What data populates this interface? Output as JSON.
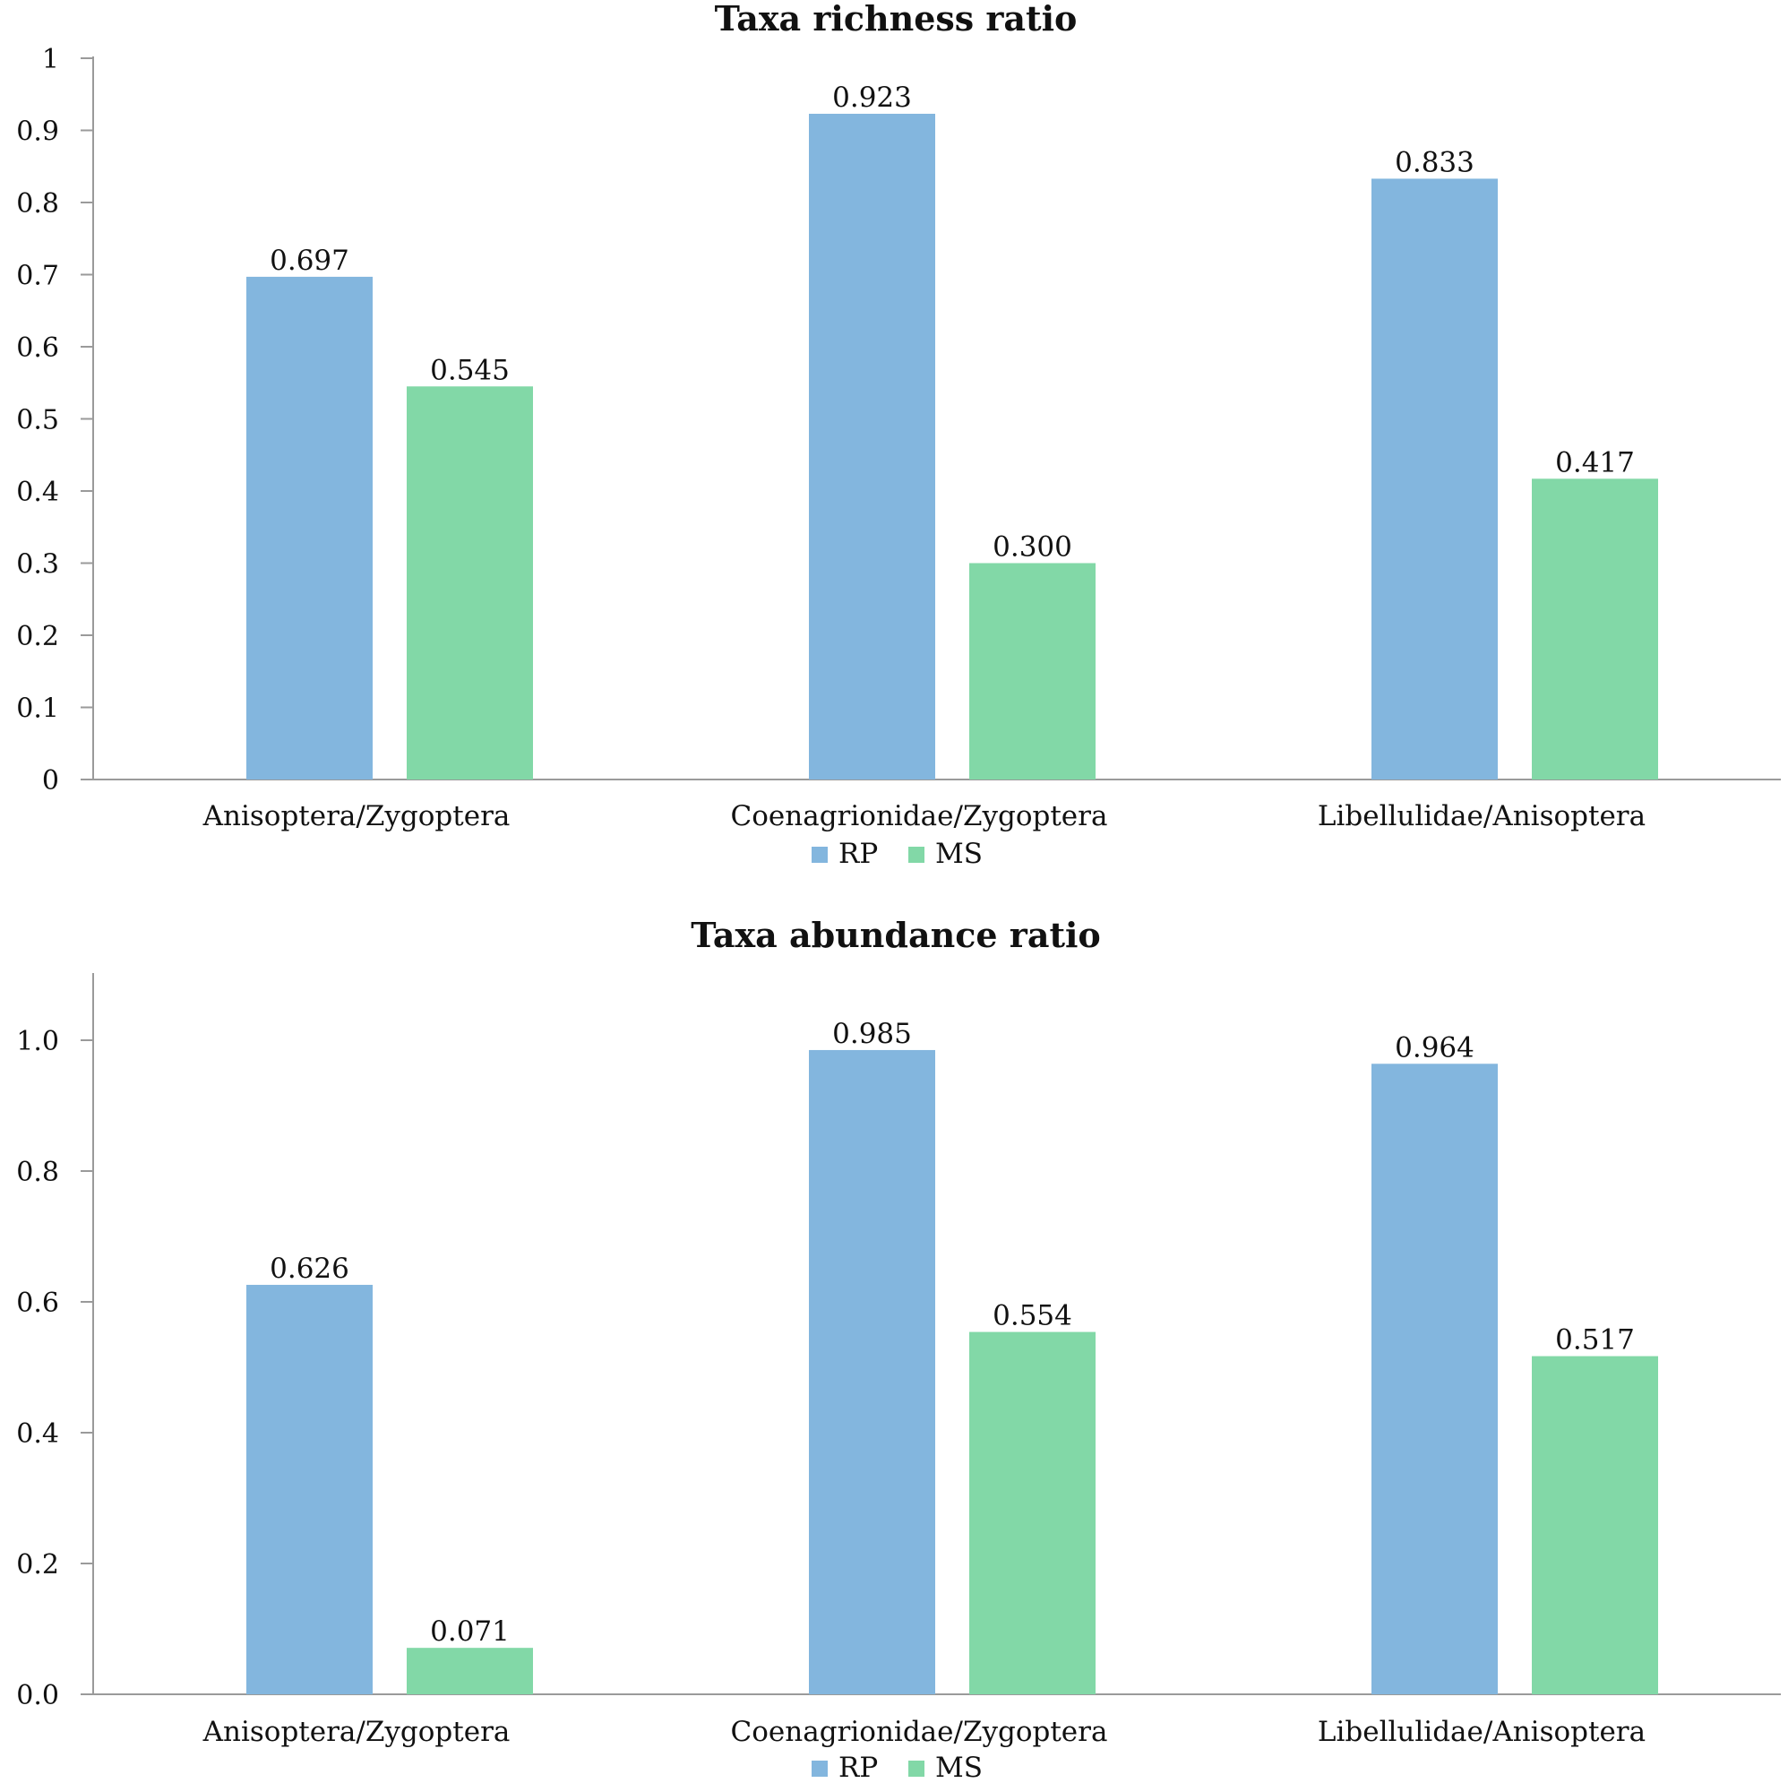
{
  "chart_data": [
    {
      "type": "bar",
      "title": "Taxa richness ratio",
      "xlabel": "",
      "ylabel": "",
      "categories": [
        "Anisoptera/Zygoptera",
        "Coenagrionidae/Zygoptera",
        "Libellulidae/Anisoptera"
      ],
      "series": [
        {
          "name": "RP",
          "color": "#83B6DE",
          "values": [
            0.697,
            0.923,
            0.833
          ],
          "labels": [
            "0.697",
            "0.923",
            "0.833"
          ]
        },
        {
          "name": "MS",
          "color": "#82D8A7",
          "values": [
            0.545,
            0.3,
            0.417
          ],
          "labels": [
            "0.545",
            "0.300",
            "0.417"
          ]
        }
      ],
      "ylim": [
        0,
        1
      ],
      "yticks": [
        0,
        0.1,
        0.2,
        0.3,
        0.4,
        0.5,
        0.6,
        0.7,
        0.8,
        0.9,
        1
      ],
      "ytick_labels": [
        "0",
        "0.1",
        "0.2",
        "0.3",
        "0.4",
        "0.5",
        "0.6",
        "0.7",
        "0.8",
        "0.9",
        "1"
      ],
      "grid": false,
      "legend": "bottom-center"
    },
    {
      "type": "bar",
      "title": "Taxa abundance ratio",
      "xlabel": "",
      "ylabel": "",
      "categories": [
        "Anisoptera/Zygoptera",
        "Coenagrionidae/Zygoptera",
        "Libellulidae/Anisoptera"
      ],
      "series": [
        {
          "name": "RP",
          "color": "#83B6DE",
          "values": [
            0.626,
            0.985,
            0.964
          ],
          "labels": [
            "0.626",
            "0.985",
            "0.964"
          ]
        },
        {
          "name": "MS",
          "color": "#82D8A7",
          "values": [
            0.071,
            0.554,
            0.517
          ],
          "labels": [
            "0.071",
            "0.554",
            "0.517"
          ]
        }
      ],
      "ylim": [
        0,
        1.1
      ],
      "yticks": [
        0,
        0.2,
        0.4,
        0.6,
        0.8,
        1.0
      ],
      "ytick_labels": [
        "0.0",
        "0.2",
        "0.4",
        "0.6",
        "0.8",
        "1.0"
      ],
      "grid": false,
      "legend": "bottom-center"
    }
  ],
  "colors": {
    "axis": "#9A9A9A",
    "text": "#111111",
    "background": "#FFFFFF"
  }
}
